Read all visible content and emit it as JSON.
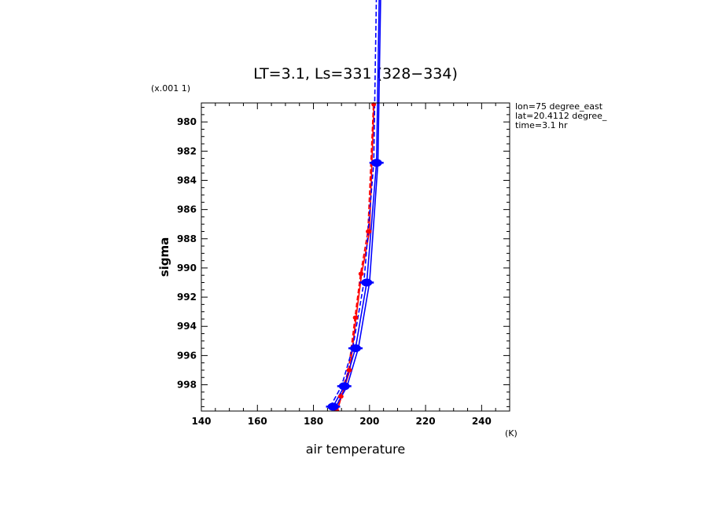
{
  "chart_data": {
    "type": "line",
    "title": "LT=3.1, Ls=331 (328−334)",
    "xlabel": "air temperature",
    "ylabel": "sigma",
    "x_unit": "(K)",
    "y_unit": "(x.001 1)",
    "xlim": [
      140,
      250
    ],
    "ylim": [
      999.8,
      978.7
    ],
    "x_ticks": [
      140,
      160,
      180,
      200,
      220,
      240
    ],
    "y_ticks": [
      980,
      982,
      984,
      986,
      988,
      990,
      992,
      994,
      996,
      998
    ],
    "annotations": [
      "lon=75 degree_east",
      "lat=20.4112 degree_",
      "time=3.1 hr"
    ],
    "colors": {
      "red": "#ff0000",
      "blue": "#0000ff"
    },
    "series": [
      {
        "color": "#ff0000",
        "dash": "solid",
        "x": [
          188.5,
          190,
          193,
          195.2,
          197.2,
          200,
          201.6
        ],
        "y": [
          999.8,
          998.8,
          997.0,
          993.4,
          990.4,
          987.5,
          978.8
        ]
      },
      {
        "color": "#ff0000",
        "dash": "dashed",
        "x": [
          188,
          189.5,
          192.5,
          194.8,
          196.8,
          199.4,
          201.4
        ],
        "y": [
          999.8,
          998.8,
          997.0,
          993.4,
          990.4,
          987.5,
          978.8
        ]
      },
      {
        "color": "#0000ff",
        "dash": "solid",
        "markers": true,
        "x": [
          187,
          191,
          195,
          199,
          202.5,
          203.5
        ],
        "y": [
          999.5,
          998.1,
          995.5,
          991.0,
          982.8,
          971.0
        ]
      },
      {
        "color": "#0000ff",
        "dash": "solid",
        "x": [
          188,
          192,
          196,
          200,
          203,
          204
        ],
        "y": [
          999.5,
          998.1,
          995.5,
          991.0,
          982.8,
          971.0
        ]
      },
      {
        "color": "#0000ff",
        "dash": "dashed",
        "x": [
          186,
          190,
          194,
          198,
          201.5,
          202.5
        ],
        "y": [
          999.5,
          998.1,
          995.5,
          991.0,
          982.8,
          971.0
        ]
      }
    ]
  }
}
